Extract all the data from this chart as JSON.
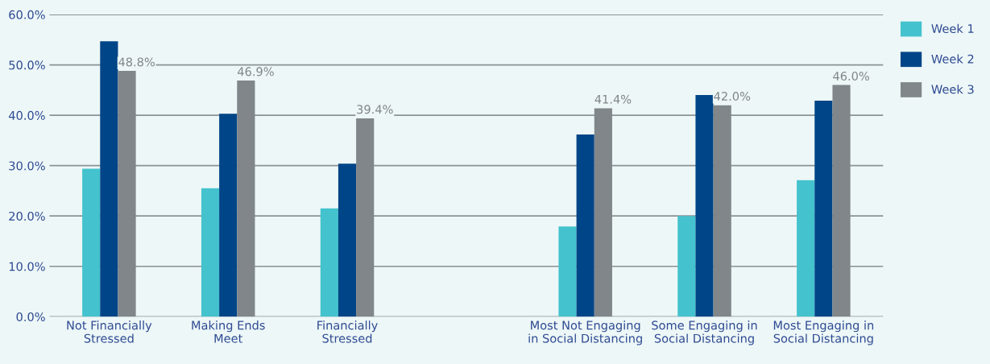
{
  "chart_data": {
    "type": "bar",
    "categories": [
      "Not Financially\nStressed",
      "Making Ends\nMeet",
      "Financially\nStressed",
      null,
      "Most Not Engaging\nin Social Distancing",
      "Some Engaging in\nSocial Distancing",
      "Most Engaging in\nSocial Distancing"
    ],
    "series": [
      {
        "name": "Week 1",
        "color": "#44c2cd",
        "values": [
          29.4,
          25.5,
          21.5,
          null,
          17.9,
          20.0,
          27.1
        ]
      },
      {
        "name": "Week 2",
        "color": "#004587",
        "values": [
          54.7,
          40.3,
          30.4,
          null,
          36.2,
          44.0,
          42.9
        ]
      },
      {
        "name": "Week 3",
        "color": "#80868a",
        "values": [
          48.8,
          46.9,
          39.4,
          null,
          41.4,
          42.0,
          46.0
        ],
        "value_labels": [
          "48.8%",
          "46.9%",
          "39.4%",
          null,
          "41.4%",
          "42.0%",
          "46.0%"
        ]
      }
    ],
    "ylim": [
      0,
      60
    ],
    "yticks": [
      {
        "value": 0,
        "label": "0.0%"
      },
      {
        "value": 10,
        "label": "10.0%"
      },
      {
        "value": 20,
        "label": "20.0%"
      },
      {
        "value": 30,
        "label": "30.0%"
      },
      {
        "value": 40,
        "label": "40.0%"
      },
      {
        "value": 50,
        "label": "50.0%"
      },
      {
        "value": 60,
        "label": "60.0%"
      }
    ],
    "grid": "y",
    "legend": "top right"
  }
}
